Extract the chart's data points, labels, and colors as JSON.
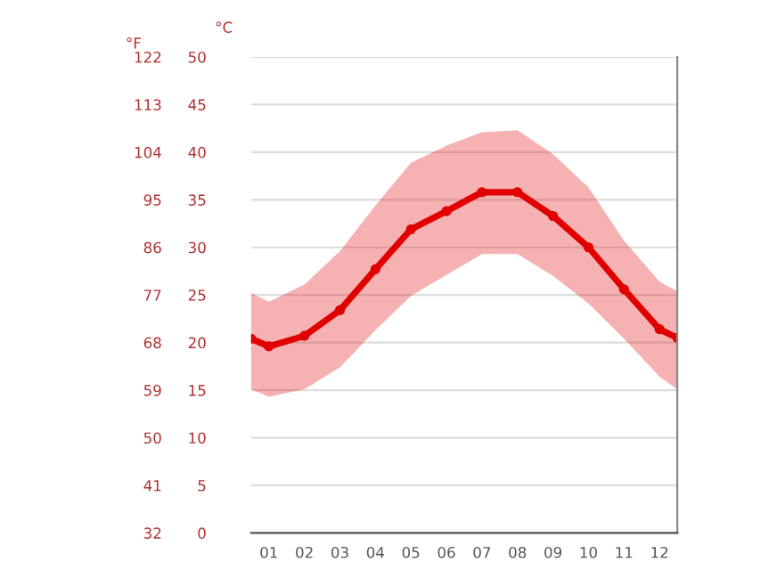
{
  "chart_data": {
    "type": "line",
    "x": [
      0.5,
      1,
      2,
      3,
      4,
      5,
      6,
      7,
      8,
      9,
      10,
      11,
      12,
      12.5
    ],
    "series": [
      {
        "color": "#e00000",
        "values": [
          20.4,
          19.6,
          20.7,
          23.4,
          27.7,
          31.9,
          33.8,
          35.8,
          35.8,
          33.3,
          30.0,
          25.6,
          21.4,
          20.5
        ],
        "lower": [
          15.1,
          14.3,
          15.1,
          17.4,
          21.3,
          24.9,
          27.1,
          29.3,
          29.3,
          27.0,
          24.1,
          20.4,
          16.4,
          15.1
        ],
        "upper": [
          25.2,
          24.3,
          26.1,
          29.6,
          34.4,
          38.9,
          40.7,
          42.1,
          42.3,
          39.8,
          36.3,
          30.7,
          26.4,
          25.4
        ]
      }
    ],
    "xlim": [
      0.5,
      12.5
    ],
    "xticks": [
      {
        "value": 1,
        "label": "01"
      },
      {
        "value": 2,
        "label": "02"
      },
      {
        "value": 3,
        "label": "03"
      },
      {
        "value": 4,
        "label": "04"
      },
      {
        "value": 5,
        "label": "05"
      },
      {
        "value": 6,
        "label": "06"
      },
      {
        "value": 7,
        "label": "07"
      },
      {
        "value": 8,
        "label": "08"
      },
      {
        "value": 9,
        "label": "09"
      },
      {
        "value": 10,
        "label": "10"
      },
      {
        "value": 11,
        "label": "11"
      },
      {
        "value": 12,
        "label": "12"
      }
    ],
    "ylabel": "°C",
    "ylim": [
      0,
      50
    ],
    "yticks": [
      0,
      5,
      10,
      15,
      20,
      25,
      30,
      35,
      40,
      45,
      50
    ],
    "y2label": "°F",
    "y2lim": [
      32,
      122
    ],
    "y2ticks": [
      32,
      41,
      50,
      59,
      68,
      77,
      86,
      95,
      104,
      113,
      122
    ],
    "grid": "y",
    "marker": "circle",
    "line_style": "solid",
    "legend": false
  }
}
